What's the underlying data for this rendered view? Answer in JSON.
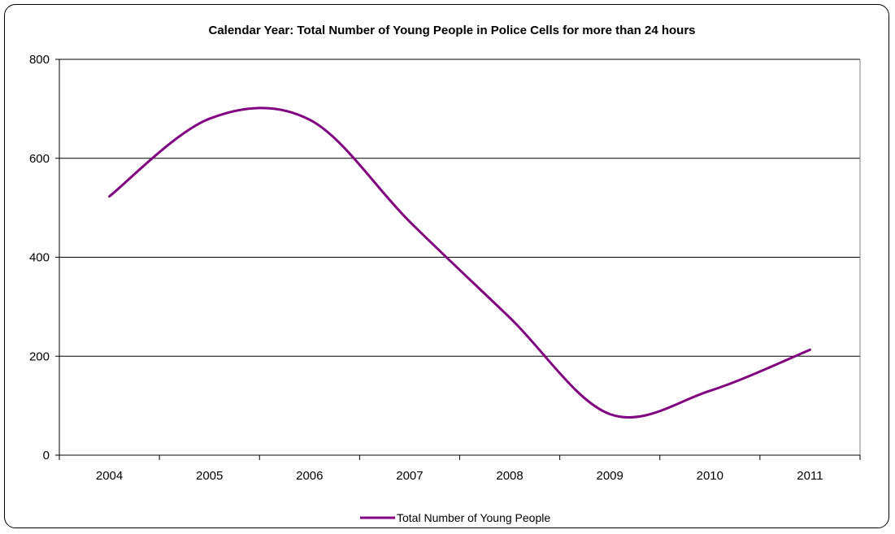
{
  "chart_data": {
    "type": "line",
    "title": "Calendar Year: Total Number of Young People in Police Cells for more than 24 hours",
    "xlabel": "",
    "ylabel": "",
    "categories": [
      "2004",
      "2005",
      "2006",
      "2007",
      "2008",
      "2009",
      "2010",
      "2011"
    ],
    "series": [
      {
        "name": "Total Number of Young People",
        "values": [
          523,
          680,
          678,
          472,
          278,
          83,
          130,
          213
        ],
        "color": "#800080"
      }
    ],
    "ylim": [
      0,
      800
    ],
    "yticks": [
      "0",
      "200",
      "400",
      "600",
      "800"
    ],
    "grid": true,
    "smooth": true,
    "legend_position": "bottom"
  }
}
